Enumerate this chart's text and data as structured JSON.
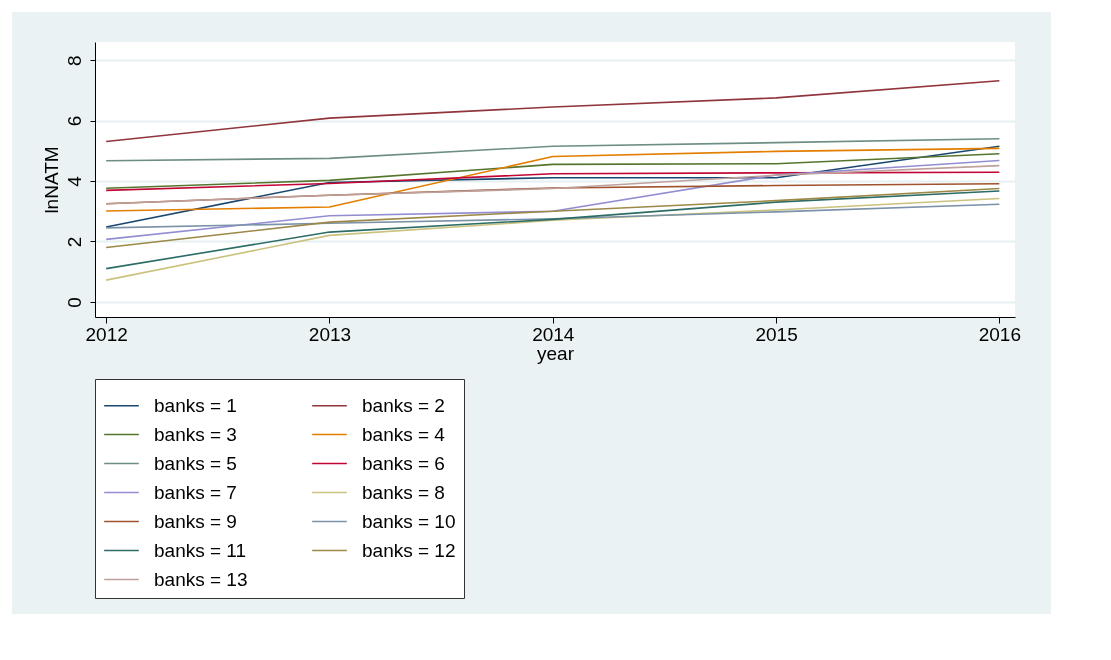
{
  "chart_data": {
    "type": "line",
    "xlabel": "year",
    "ylabel": "lnNATM",
    "x": [
      2012,
      2013,
      2014,
      2015,
      2016
    ],
    "xlim": [
      2011.95,
      2016.07
    ],
    "ylim": [
      -0.5,
      8.6
    ],
    "xticks": [
      2012,
      2013,
      2014,
      2015,
      2016
    ],
    "yticks": [
      0,
      2,
      4,
      6,
      8
    ],
    "grid": "y",
    "legend": "bottom",
    "series": [
      {
        "name": "banks = 1",
        "color": "#1a476f",
        "values": [
          2.48,
          3.95,
          4.11,
          4.11,
          5.15
        ]
      },
      {
        "name": "banks = 2",
        "color": "#90353b",
        "values": [
          5.31,
          6.08,
          6.45,
          6.75,
          7.32
        ]
      },
      {
        "name": "banks = 3",
        "color": "#55752f",
        "values": [
          3.76,
          4.02,
          4.55,
          4.57,
          4.9
        ]
      },
      {
        "name": "banks = 4",
        "color": "#e37e00",
        "values": [
          3.01,
          3.14,
          4.81,
          4.98,
          5.08
        ]
      },
      {
        "name": "banks = 5",
        "color": "#6e8e84",
        "values": [
          4.67,
          4.75,
          5.15,
          5.27,
          5.4
        ]
      },
      {
        "name": "banks = 6",
        "color": "#c10534",
        "values": [
          3.69,
          3.92,
          4.24,
          4.27,
          4.29
        ]
      },
      {
        "name": "banks = 7",
        "color": "#938dd2",
        "values": [
          2.07,
          2.85,
          3.0,
          4.2,
          4.68
        ]
      },
      {
        "name": "banks = 8",
        "color": "#cac27e",
        "values": [
          0.72,
          2.2,
          2.7,
          3.04,
          3.42
        ]
      },
      {
        "name": "banks = 9",
        "color": "#a0522d",
        "values": [
          3.25,
          3.53,
          3.77,
          3.85,
          3.91
        ]
      },
      {
        "name": "banks = 10",
        "color": "#7b92a8",
        "values": [
          2.45,
          2.6,
          2.75,
          2.98,
          3.23
        ]
      },
      {
        "name": "banks = 11",
        "color": "#2d6d66",
        "values": [
          1.1,
          2.31,
          2.73,
          3.3,
          3.67
        ]
      },
      {
        "name": "banks = 12",
        "color": "#9c8847",
        "values": [
          1.8,
          2.64,
          3.0,
          3.35,
          3.75
        ]
      },
      {
        "name": "banks = 13",
        "color": "#bfa19c",
        "values": [
          3.25,
          3.53,
          3.75,
          4.19,
          4.51
        ]
      }
    ]
  }
}
